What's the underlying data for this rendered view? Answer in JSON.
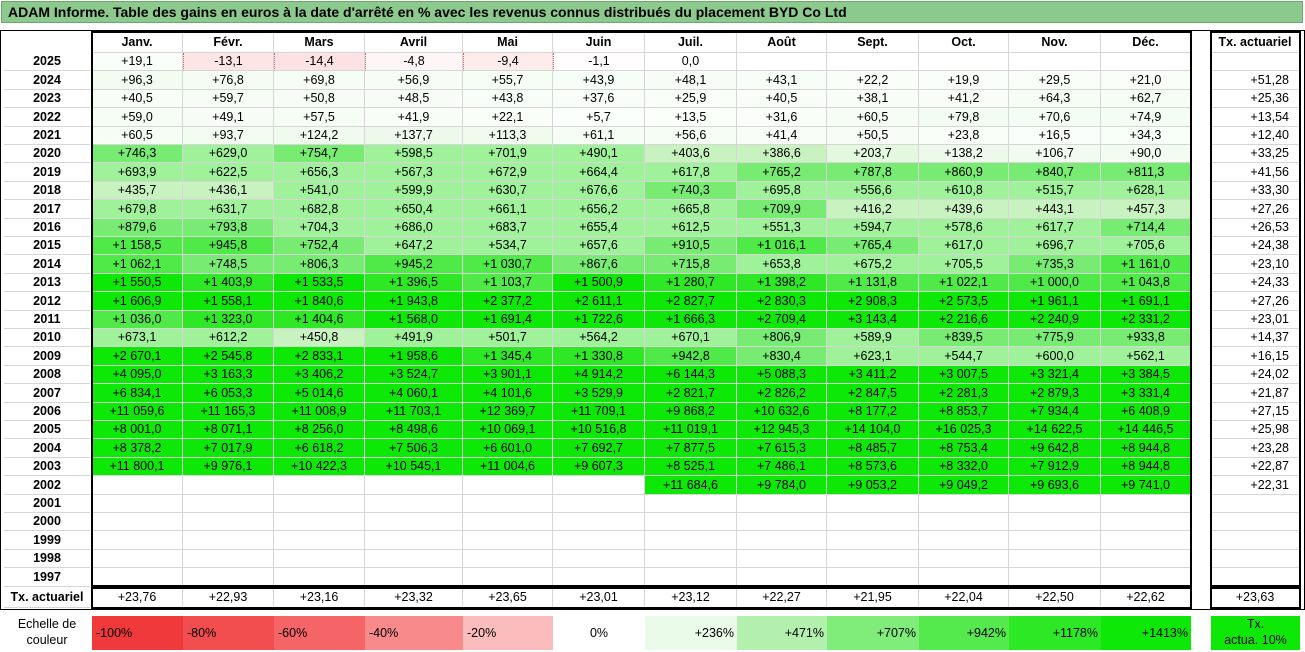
{
  "title": "ADAM Informe. Table des gains en euros à la date d'arrêté en % avec les revenus connus distribués du placement BYD Co Ltd",
  "chart_data": {
    "type": "heatmap",
    "title": "ADAM Informe. Table des gains en euros à la date d'arrêté en % avec les revenus connus distribués du placement BYD Co Ltd",
    "columns": [
      "Janv.",
      "Févr.",
      "Mars",
      "Avril",
      "Mai",
      "Juin",
      "Juil.",
      "Août",
      "Sept.",
      "Oct.",
      "Nov.",
      "Déc."
    ],
    "row_total_header": "Tx. actuariel",
    "rows": [
      {
        "year": "2025",
        "values": [
          "+19,1",
          "-13,1",
          "-14,4",
          "-4,8",
          "-9,4",
          "-1,1",
          "0,0",
          "",
          "",
          "",
          "",
          ""
        ],
        "total": ""
      },
      {
        "year": "2024",
        "values": [
          "+96,3",
          "+76,8",
          "+69,8",
          "+56,9",
          "+55,7",
          "+43,9",
          "+48,1",
          "+43,1",
          "+22,2",
          "+19,9",
          "+29,5",
          "+21,0"
        ],
        "total": "+51,28"
      },
      {
        "year": "2023",
        "values": [
          "+40,5",
          "+59,7",
          "+50,8",
          "+48,5",
          "+43,8",
          "+37,6",
          "+25,9",
          "+40,5",
          "+38,1",
          "+41,2",
          "+64,3",
          "+62,7"
        ],
        "total": "+25,36"
      },
      {
        "year": "2022",
        "values": [
          "+59,0",
          "+49,1",
          "+57,5",
          "+41,9",
          "+22,1",
          "+5,7",
          "+13,5",
          "+31,6",
          "+60,5",
          "+79,8",
          "+70,6",
          "+74,9"
        ],
        "total": "+13,54"
      },
      {
        "year": "2021",
        "values": [
          "+60,5",
          "+93,7",
          "+124,2",
          "+137,7",
          "+113,3",
          "+61,1",
          "+56,6",
          "+41,4",
          "+50,5",
          "+23,8",
          "+16,5",
          "+34,3"
        ],
        "total": "+12,40"
      },
      {
        "year": "2020",
        "values": [
          "+746,3",
          "+629,0",
          "+754,7",
          "+598,5",
          "+701,9",
          "+490,1",
          "+403,6",
          "+386,6",
          "+203,7",
          "+138,2",
          "+106,7",
          "+90,0"
        ],
        "total": "+33,25"
      },
      {
        "year": "2019",
        "values": [
          "+693,9",
          "+622,5",
          "+656,3",
          "+567,3",
          "+672,9",
          "+664,4",
          "+617,8",
          "+765,2",
          "+787,8",
          "+860,9",
          "+840,7",
          "+811,3"
        ],
        "total": "+41,56"
      },
      {
        "year": "2018",
        "values": [
          "+435,7",
          "+436,1",
          "+541,0",
          "+599,9",
          "+630,7",
          "+676,6",
          "+740,3",
          "+695,8",
          "+556,6",
          "+610,8",
          "+515,7",
          "+628,1"
        ],
        "total": "+33,30"
      },
      {
        "year": "2017",
        "values": [
          "+679,8",
          "+631,7",
          "+682,8",
          "+650,4",
          "+661,1",
          "+656,2",
          "+665,8",
          "+709,9",
          "+416,2",
          "+439,6",
          "+443,1",
          "+457,3"
        ],
        "total": "+27,26"
      },
      {
        "year": "2016",
        "values": [
          "+879,6",
          "+793,8",
          "+704,3",
          "+686,0",
          "+683,7",
          "+655,4",
          "+612,5",
          "+551,3",
          "+594,7",
          "+578,6",
          "+617,7",
          "+714,4"
        ],
        "total": "+26,53"
      },
      {
        "year": "2015",
        "values": [
          "+1 158,5",
          "+945,8",
          "+752,4",
          "+647,2",
          "+534,7",
          "+657,6",
          "+910,5",
          "+1 016,1",
          "+765,4",
          "+617,0",
          "+696,7",
          "+705,6"
        ],
        "total": "+24,38"
      },
      {
        "year": "2014",
        "values": [
          "+1 062,1",
          "+748,5",
          "+806,3",
          "+945,2",
          "+1 030,7",
          "+867,6",
          "+715,8",
          "+653,8",
          "+675,2",
          "+705,5",
          "+735,3",
          "+1 161,0"
        ],
        "total": "+23,10"
      },
      {
        "year": "2013",
        "values": [
          "+1 550,5",
          "+1 403,9",
          "+1 533,5",
          "+1 396,5",
          "+1 103,7",
          "+1 500,9",
          "+1 280,7",
          "+1 398,2",
          "+1 131,8",
          "+1 022,1",
          "+1 000,0",
          "+1 043,8"
        ],
        "total": "+24,33"
      },
      {
        "year": "2012",
        "values": [
          "+1 606,9",
          "+1 558,1",
          "+1 840,6",
          "+1 943,8",
          "+2 377,2",
          "+2 611,1",
          "+2 827,7",
          "+2 830,3",
          "+2 908,3",
          "+2 573,5",
          "+1 961,1",
          "+1 691,1"
        ],
        "total": "+27,26"
      },
      {
        "year": "2011",
        "values": [
          "+1 036,0",
          "+1 323,0",
          "+1 404,6",
          "+1 568,0",
          "+1 691,4",
          "+1 722,6",
          "+1 666,3",
          "+2 709,4",
          "+3 143,4",
          "+2 216,6",
          "+2 240,9",
          "+2 331,2"
        ],
        "total": "+23,01"
      },
      {
        "year": "2010",
        "values": [
          "+673,1",
          "+612,2",
          "+450,8",
          "+491,9",
          "+501,7",
          "+564,2",
          "+670,1",
          "+806,9",
          "+589,9",
          "+839,5",
          "+775,9",
          "+933,8"
        ],
        "total": "+14,37"
      },
      {
        "year": "2009",
        "values": [
          "+2 670,1",
          "+2 545,8",
          "+2 833,1",
          "+1 958,6",
          "+1 345,4",
          "+1 330,8",
          "+942,8",
          "+830,4",
          "+623,1",
          "+544,7",
          "+600,0",
          "+562,1"
        ],
        "total": "+16,15"
      },
      {
        "year": "2008",
        "values": [
          "+4 095,0",
          "+3 163,3",
          "+3 406,2",
          "+3 524,7",
          "+3 901,1",
          "+4 914,2",
          "+6 144,3",
          "+5 088,3",
          "+3 411,2",
          "+3 007,5",
          "+3 321,4",
          "+3 384,5"
        ],
        "total": "+24,02"
      },
      {
        "year": "2007",
        "values": [
          "+6 834,1",
          "+6 053,3",
          "+5 014,6",
          "+4 060,1",
          "+4 101,6",
          "+3 529,9",
          "+2 821,7",
          "+2 826,2",
          "+2 847,5",
          "+2 281,3",
          "+2 879,3",
          "+3 331,4"
        ],
        "total": "+21,87"
      },
      {
        "year": "2006",
        "values": [
          "+11 059,6",
          "+11 165,3",
          "+11 008,9",
          "+11 703,1",
          "+12 369,7",
          "+11 709,1",
          "+9 868,2",
          "+10 632,6",
          "+8 177,2",
          "+8 853,7",
          "+7 934,4",
          "+6 408,9"
        ],
        "total": "+27,15"
      },
      {
        "year": "2005",
        "values": [
          "+8 001,0",
          "+8 071,1",
          "+8 256,0",
          "+8 498,6",
          "+10 069,1",
          "+10 516,8",
          "+11 019,1",
          "+12 945,3",
          "+14 104,0",
          "+16 025,3",
          "+14 622,5",
          "+14 446,5"
        ],
        "total": "+25,98"
      },
      {
        "year": "2004",
        "values": [
          "+8 378,2",
          "+7 017,9",
          "+6 618,2",
          "+7 506,3",
          "+6 601,0",
          "+7 692,7",
          "+7 877,5",
          "+7 615,3",
          "+8 485,7",
          "+8 753,4",
          "+9 642,8",
          "+8 944,8"
        ],
        "total": "+23,28"
      },
      {
        "year": "2003",
        "values": [
          "+11 800,1",
          "+9 976,1",
          "+10 422,3",
          "+10 545,1",
          "+11 004,6",
          "+9 607,3",
          "+8 525,1",
          "+7 486,1",
          "+8 573,6",
          "+8 332,0",
          "+7 912,9",
          "+8 944,8"
        ],
        "total": "+22,87"
      },
      {
        "year": "2002",
        "values": [
          "",
          "",
          "",
          "",
          "",
          "",
          "+11 684,6",
          "+9 784,0",
          "+9 053,2",
          "+9 049,2",
          "+9 693,6",
          "+9 741,0"
        ],
        "total": "+22,31"
      },
      {
        "year": "2001",
        "values": [
          "",
          "",
          "",
          "",
          "",
          "",
          "",
          "",
          "",
          "",
          "",
          ""
        ],
        "total": ""
      },
      {
        "year": "2000",
        "values": [
          "",
          "",
          "",
          "",
          "",
          "",
          "",
          "",
          "",
          "",
          "",
          ""
        ],
        "total": ""
      },
      {
        "year": "1999",
        "values": [
          "",
          "",
          "",
          "",
          "",
          "",
          "",
          "",
          "",
          "",
          "",
          ""
        ],
        "total": ""
      },
      {
        "year": "1998",
        "values": [
          "",
          "",
          "",
          "",
          "",
          "",
          "",
          "",
          "",
          "",
          "",
          ""
        ],
        "total": ""
      },
      {
        "year": "1997",
        "values": [
          "",
          "",
          "",
          "",
          "",
          "",
          "",
          "",
          "",
          "",
          "",
          ""
        ],
        "total": ""
      }
    ],
    "footer": {
      "label": "Tx. actuariel",
      "values": [
        "+23,76",
        "+22,93",
        "+23,16",
        "+23,32",
        "+23,65",
        "+23,01",
        "+23,12",
        "+22,27",
        "+21,95",
        "+22,04",
        "+22,50",
        "+22,62"
      ],
      "total": "+23,63"
    },
    "scale": {
      "label_line1": "Echelle de",
      "label_line2": "couleur",
      "items": [
        {
          "label": "-100%",
          "color": "#f0393b"
        },
        {
          "label": "-80%",
          "color": "#f24d4f"
        },
        {
          "label": "-60%",
          "color": "#f56466"
        },
        {
          "label": "-40%",
          "color": "#f88a8c"
        },
        {
          "label": "-20%",
          "color": "#fbbcbd"
        },
        {
          "label": "0%",
          "color": "#ffffff"
        },
        {
          "label": "+236%",
          "color": "#ebfbe9"
        },
        {
          "label": "+471%",
          "color": "#b4f0ad"
        },
        {
          "label": "+707%",
          "color": "#80ec7a"
        },
        {
          "label": "+942%",
          "color": "#54ea4d"
        },
        {
          "label": "+1178%",
          "color": "#2de825"
        },
        {
          "label": "+1413%",
          "color": "#0ee807"
        }
      ],
      "reference_line1": "Tx.",
      "reference_line2": "actua. 10%",
      "reference_color": "#0ee807"
    }
  }
}
